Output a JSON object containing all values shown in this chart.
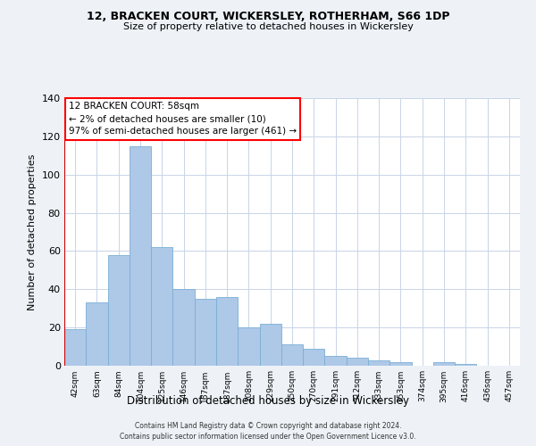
{
  "title": "12, BRACKEN COURT, WICKERSLEY, ROTHERHAM, S66 1DP",
  "subtitle": "Size of property relative to detached houses in Wickersley",
  "xlabel": "Distribution of detached houses by size in Wickersley",
  "ylabel": "Number of detached properties",
  "bar_labels": [
    "42sqm",
    "63sqm",
    "84sqm",
    "104sqm",
    "125sqm",
    "146sqm",
    "167sqm",
    "187sqm",
    "208sqm",
    "229sqm",
    "250sqm",
    "270sqm",
    "291sqm",
    "312sqm",
    "333sqm",
    "353sqm",
    "374sqm",
    "395sqm",
    "416sqm",
    "436sqm",
    "457sqm"
  ],
  "bar_values": [
    19,
    33,
    58,
    115,
    62,
    40,
    35,
    36,
    20,
    22,
    11,
    9,
    5,
    4,
    3,
    2,
    0,
    2,
    1,
    0,
    0
  ],
  "bar_color": "#aec8e8",
  "bar_edge_color": "#7aafd4",
  "highlight_color": "#cc0000",
  "ylim": [
    0,
    140
  ],
  "yticks": [
    0,
    20,
    40,
    60,
    80,
    100,
    120,
    140
  ],
  "annotation_title": "12 BRACKEN COURT: 58sqm",
  "annotation_line1": "← 2% of detached houses are smaller (10)",
  "annotation_line2": "97% of semi-detached houses are larger (461) →",
  "footer1": "Contains HM Land Registry data © Crown copyright and database right 2024.",
  "footer2": "Contains public sector information licensed under the Open Government Licence v3.0.",
  "bg_color": "#eef2f7",
  "plot_bg_color": "#ffffff",
  "grid_color": "#c8d4e8"
}
